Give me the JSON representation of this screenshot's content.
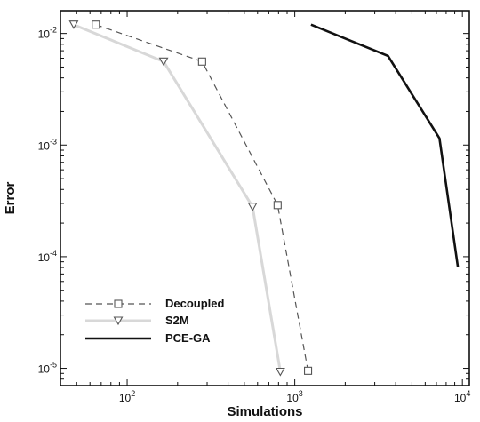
{
  "chart_data": {
    "type": "line",
    "title": "",
    "xlabel": "Simulations",
    "ylabel": "Error",
    "xscale": "log",
    "yscale": "log",
    "xlim": [
      40,
      11000
    ],
    "ylim": [
      7e-06,
      0.016
    ],
    "grid": false,
    "legend_position": "bottom-left",
    "x_ticks": [
      {
        "value": 100,
        "base": "10",
        "exp": "2"
      },
      {
        "value": 1000,
        "base": "10",
        "exp": "3"
      },
      {
        "value": 10000,
        "base": "10",
        "exp": "4"
      }
    ],
    "y_ticks": [
      {
        "value": 0.01,
        "base": "10",
        "exp": "-2"
      },
      {
        "value": 0.001,
        "base": "10",
        "exp": "-3"
      },
      {
        "value": 0.0001,
        "base": "10",
        "exp": "-4"
      },
      {
        "value": 1e-05,
        "base": "10",
        "exp": "-5"
      }
    ],
    "series": [
      {
        "name": "Decoupled",
        "style": "dashed",
        "marker": "square",
        "color": "#555555",
        "x": [
          65,
          280,
          790,
          1200
        ],
        "y": [
          0.012,
          0.0056,
          0.00029,
          9.5e-06
        ]
      },
      {
        "name": "S2M",
        "style": "solid-light",
        "marker": "triangle-down",
        "color": "#d8d8d8",
        "marker_color": "#555555",
        "x": [
          48,
          165,
          560,
          820
        ],
        "y": [
          0.012,
          0.0056,
          0.00028,
          9.3e-06
        ]
      },
      {
        "name": "PCE-GA",
        "style": "solid-thick",
        "marker": "none",
        "color": "#111111",
        "x": [
          1250,
          3600,
          7300,
          9400
        ],
        "y": [
          0.012,
          0.0063,
          0.00115,
          8.1e-05
        ]
      }
    ]
  }
}
